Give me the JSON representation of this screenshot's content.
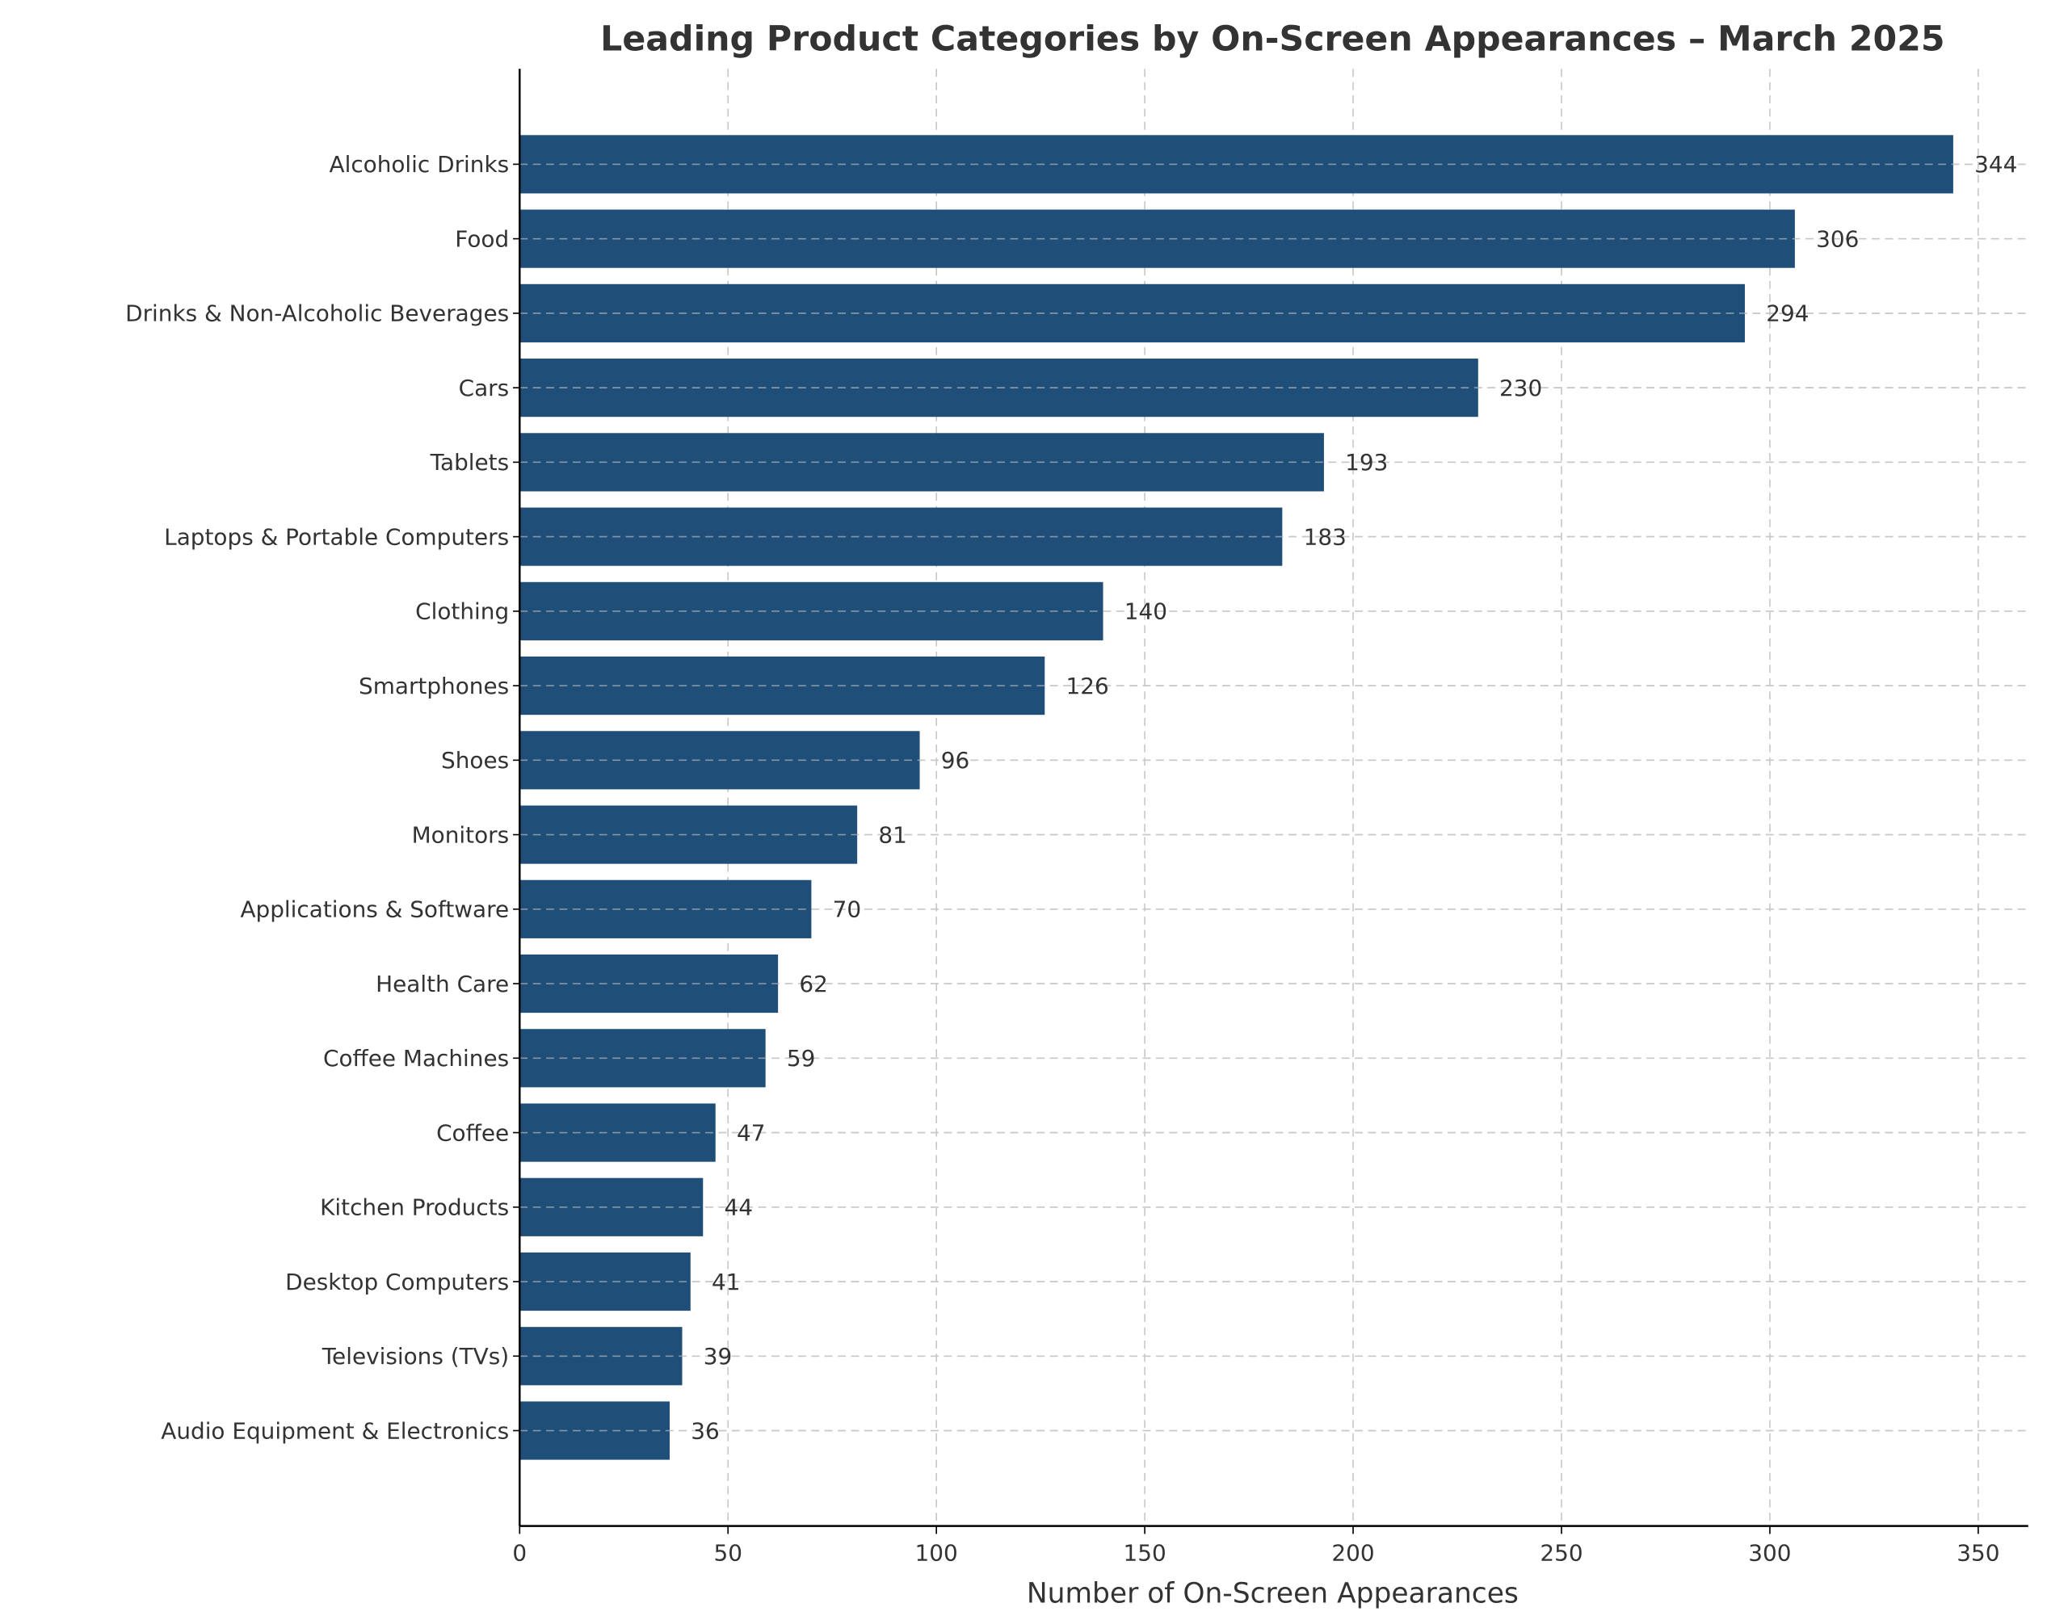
{
  "chart_data": {
    "type": "bar",
    "orientation": "horizontal",
    "title": "Leading Product Categories by On-Screen Appearances – March 2025",
    "xlabel": "Number of On-Screen Appearances",
    "ylabel": "",
    "xlim": [
      0,
      362
    ],
    "xticks": [
      0,
      50,
      100,
      150,
      200,
      250,
      300,
      350
    ],
    "grid": true,
    "bar_color": "#1f4e79",
    "categories": [
      "Alcoholic Drinks",
      "Food",
      "Drinks & Non-Alcoholic Beverages",
      "Cars",
      "Tablets",
      "Laptops & Portable Computers",
      "Clothing",
      "Smartphones",
      "Shoes",
      "Monitors",
      "Applications & Software",
      "Health Care",
      "Coffee Machines",
      "Coffee",
      "Kitchen Products",
      "Desktop Computers",
      "Televisions (TVs)",
      "Audio Equipment & Electronics"
    ],
    "values": [
      344,
      306,
      294,
      230,
      193,
      183,
      140,
      126,
      96,
      81,
      70,
      62,
      59,
      47,
      44,
      41,
      39,
      36
    ]
  }
}
